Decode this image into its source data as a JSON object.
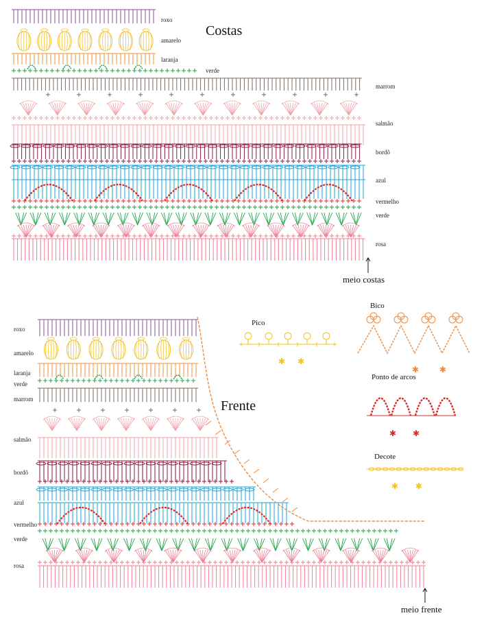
{
  "colors": {
    "roxo": "#8a4f9c",
    "amarelo": "#f2c230",
    "laranja": "#f0923a",
    "verde": "#1fa64a",
    "marrom": "#7d6a62",
    "salmao": "#f2a0a8",
    "bordo": "#8b1a3d",
    "azul": "#1aa3d8",
    "vermelho": "#e02a2a",
    "rosa": "#f07e96",
    "decote": "#f7c21a",
    "bico": "#f08a3a"
  },
  "costas": {
    "title": "Costas",
    "labels": [
      "roxo",
      "amarelo",
      "laranja",
      "verde",
      "marrom",
      "salmão",
      "bordô",
      "azul",
      "vermelho",
      "verde",
      "rosa"
    ],
    "marker": "meio costas"
  },
  "frente": {
    "title": "Frente",
    "labels": [
      "roxo",
      "amarelo",
      "laranja",
      "verde",
      "marrom",
      "salmão",
      "bordô",
      "azul",
      "vermelho",
      "verde",
      "rosa"
    ],
    "marker": "meio frente"
  },
  "legend": {
    "pico": "Pico",
    "bico": "Bico",
    "arcos": "Ponto de arcos",
    "decote": "Decote"
  }
}
